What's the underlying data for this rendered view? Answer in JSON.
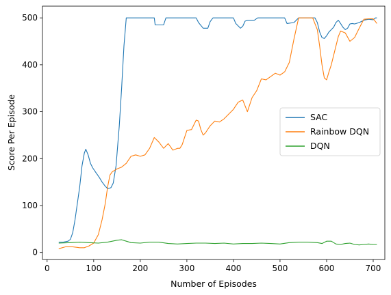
{
  "chart_data": {
    "type": "line",
    "title": "",
    "xlabel": "Number of Episodes",
    "ylabel": "Score Per Episode",
    "xlim": [
      -10,
      725
    ],
    "ylim": [
      -15,
      525
    ],
    "xticks": [
      0,
      100,
      200,
      300,
      400,
      500,
      600,
      700
    ],
    "yticks": [
      0,
      100,
      200,
      300,
      400,
      500
    ],
    "grid": false,
    "legend_position": "center-right",
    "series": [
      {
        "name": "SAC",
        "color": "#1f77b4",
        "points": [
          [
            25,
            22
          ],
          [
            35,
            22
          ],
          [
            45,
            24
          ],
          [
            50,
            28
          ],
          [
            55,
            42
          ],
          [
            60,
            70
          ],
          [
            65,
            105
          ],
          [
            70,
            140
          ],
          [
            75,
            185
          ],
          [
            80,
            212
          ],
          [
            83,
            220
          ],
          [
            88,
            208
          ],
          [
            93,
            190
          ],
          [
            98,
            180
          ],
          [
            105,
            170
          ],
          [
            112,
            160
          ],
          [
            118,
            150
          ],
          [
            124,
            142
          ],
          [
            130,
            136
          ],
          [
            137,
            138
          ],
          [
            142,
            148
          ],
          [
            148,
            185
          ],
          [
            155,
            270
          ],
          [
            160,
            350
          ],
          [
            165,
            440
          ],
          [
            170,
            500
          ],
          [
            230,
            500
          ],
          [
            232,
            485
          ],
          [
            250,
            485
          ],
          [
            255,
            500
          ],
          [
            320,
            500
          ],
          [
            325,
            490
          ],
          [
            335,
            478
          ],
          [
            345,
            478
          ],
          [
            350,
            492
          ],
          [
            356,
            500
          ],
          [
            400,
            500
          ],
          [
            405,
            488
          ],
          [
            415,
            478
          ],
          [
            420,
            482
          ],
          [
            425,
            493
          ],
          [
            430,
            495
          ],
          [
            445,
            495
          ],
          [
            452,
            500
          ],
          [
            510,
            500
          ],
          [
            515,
            488
          ],
          [
            530,
            490
          ],
          [
            540,
            500
          ],
          [
            575,
            500
          ],
          [
            580,
            490
          ],
          [
            585,
            470
          ],
          [
            590,
            458
          ],
          [
            595,
            456
          ],
          [
            600,
            462
          ],
          [
            605,
            470
          ],
          [
            610,
            475
          ],
          [
            615,
            480
          ],
          [
            620,
            490
          ],
          [
            625,
            495
          ],
          [
            630,
            488
          ],
          [
            635,
            480
          ],
          [
            640,
            475
          ],
          [
            645,
            478
          ],
          [
            650,
            487
          ],
          [
            655,
            488
          ],
          [
            660,
            487
          ],
          [
            670,
            490
          ],
          [
            680,
            495
          ],
          [
            690,
            497
          ],
          [
            700,
            496
          ],
          [
            705,
            500
          ],
          [
            708,
            500
          ]
        ]
      },
      {
        "name": "Rainbow DQN",
        "color": "#ff7f0e",
        "points": [
          [
            25,
            8
          ],
          [
            40,
            12
          ],
          [
            55,
            12
          ],
          [
            70,
            10
          ],
          [
            80,
            10
          ],
          [
            90,
            14
          ],
          [
            100,
            20
          ],
          [
            110,
            38
          ],
          [
            118,
            70
          ],
          [
            125,
            105
          ],
          [
            130,
            140
          ],
          [
            135,
            165
          ],
          [
            140,
            172
          ],
          [
            145,
            175
          ],
          [
            150,
            178
          ],
          [
            160,
            182
          ],
          [
            170,
            190
          ],
          [
            180,
            205
          ],
          [
            190,
            208
          ],
          [
            200,
            205
          ],
          [
            210,
            208
          ],
          [
            220,
            222
          ],
          [
            230,
            245
          ],
          [
            240,
            235
          ],
          [
            250,
            222
          ],
          [
            260,
            232
          ],
          [
            270,
            218
          ],
          [
            280,
            222
          ],
          [
            285,
            222
          ],
          [
            290,
            230
          ],
          [
            300,
            260
          ],
          [
            310,
            262
          ],
          [
            315,
            272
          ],
          [
            320,
            282
          ],
          [
            325,
            280
          ],
          [
            330,
            262
          ],
          [
            335,
            250
          ],
          [
            340,
            255
          ],
          [
            350,
            270
          ],
          [
            360,
            280
          ],
          [
            370,
            278
          ],
          [
            380,
            285
          ],
          [
            390,
            295
          ],
          [
            400,
            305
          ],
          [
            410,
            320
          ],
          [
            420,
            325
          ],
          [
            430,
            300
          ],
          [
            440,
            330
          ],
          [
            450,
            345
          ],
          [
            460,
            370
          ],
          [
            470,
            368
          ],
          [
            480,
            375
          ],
          [
            490,
            382
          ],
          [
            500,
            378
          ],
          [
            510,
            385
          ],
          [
            520,
            405
          ],
          [
            530,
            455
          ],
          [
            540,
            500
          ],
          [
            570,
            500
          ],
          [
            580,
            475
          ],
          [
            585,
            440
          ],
          [
            590,
            400
          ],
          [
            595,
            372
          ],
          [
            600,
            368
          ],
          [
            605,
            385
          ],
          [
            610,
            400
          ],
          [
            615,
            420
          ],
          [
            620,
            440
          ],
          [
            625,
            460
          ],
          [
            630,
            472
          ],
          [
            640,
            468
          ],
          [
            650,
            450
          ],
          [
            660,
            458
          ],
          [
            670,
            478
          ],
          [
            680,
            497
          ],
          [
            690,
            498
          ],
          [
            700,
            498
          ],
          [
            705,
            492
          ],
          [
            708,
            488
          ]
        ]
      },
      {
        "name": "DQN",
        "color": "#2ca02c",
        "points": [
          [
            25,
            20
          ],
          [
            50,
            21
          ],
          [
            70,
            22
          ],
          [
            90,
            21
          ],
          [
            110,
            20
          ],
          [
            130,
            22
          ],
          [
            150,
            26
          ],
          [
            160,
            27
          ],
          [
            170,
            24
          ],
          [
            180,
            21
          ],
          [
            200,
            20
          ],
          [
            220,
            22
          ],
          [
            240,
            22
          ],
          [
            260,
            19
          ],
          [
            280,
            18
          ],
          [
            300,
            19
          ],
          [
            320,
            20
          ],
          [
            340,
            20
          ],
          [
            360,
            19
          ],
          [
            380,
            20
          ],
          [
            400,
            18
          ],
          [
            420,
            19
          ],
          [
            440,
            19
          ],
          [
            460,
            20
          ],
          [
            480,
            19
          ],
          [
            500,
            18
          ],
          [
            520,
            21
          ],
          [
            540,
            22
          ],
          [
            560,
            22
          ],
          [
            580,
            21
          ],
          [
            590,
            19
          ],
          [
            600,
            24
          ],
          [
            610,
            24
          ],
          [
            620,
            18
          ],
          [
            630,
            17
          ],
          [
            640,
            19
          ],
          [
            650,
            20
          ],
          [
            660,
            17
          ],
          [
            670,
            16
          ],
          [
            680,
            17
          ],
          [
            690,
            18
          ],
          [
            700,
            17
          ],
          [
            708,
            17
          ]
        ]
      }
    ]
  }
}
